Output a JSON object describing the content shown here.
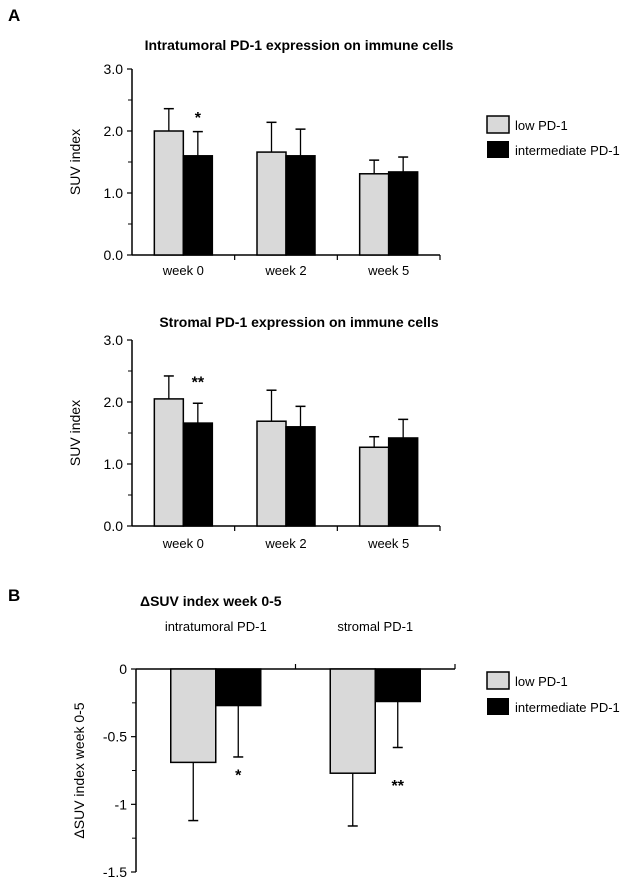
{
  "panel_labels": {
    "a": "A",
    "b": "B"
  },
  "colors": {
    "low": "#d9d9d9",
    "intermediate": "#000000",
    "axis": "#000000"
  },
  "legend": {
    "low": "low PD-1",
    "intermediate": "intermediate PD-1"
  },
  "chart_data": [
    {
      "type": "bar",
      "title": "Intratumoral PD-1 expression on immune cells",
      "xlabel": "",
      "ylabel": "SUV index",
      "ylim": [
        0,
        3.0
      ],
      "yticks": [
        "0.0",
        "1.0",
        "2.0",
        "3.0"
      ],
      "categories": [
        "week 0",
        "week 2",
        "week 5"
      ],
      "series": [
        {
          "name": "low PD-1",
          "values": [
            2.0,
            1.66,
            1.31
          ],
          "error_upper": [
            2.36,
            2.14,
            1.53
          ]
        },
        {
          "name": "intermediate PD-1",
          "values": [
            1.6,
            1.6,
            1.34
          ],
          "error_upper": [
            1.99,
            2.03,
            1.58
          ]
        }
      ],
      "annotations": [
        {
          "category": "week 0",
          "text": "*"
        }
      ],
      "legend_position": "right"
    },
    {
      "type": "bar",
      "title": "Stromal PD-1 expression on immune cells",
      "xlabel": "",
      "ylabel": "SUV index",
      "ylim": [
        0,
        3.0
      ],
      "yticks": [
        "0.0",
        "1.0",
        "2.0",
        "3.0"
      ],
      "categories": [
        "week 0",
        "week 2",
        "week 5"
      ],
      "series": [
        {
          "name": "low PD-1",
          "values": [
            2.05,
            1.69,
            1.27
          ],
          "error_upper": [
            2.42,
            2.19,
            1.44
          ]
        },
        {
          "name": "intermediate PD-1",
          "values": [
            1.66,
            1.6,
            1.42
          ],
          "error_upper": [
            1.98,
            1.93,
            1.72
          ]
        }
      ],
      "annotations": [
        {
          "category": "week 0",
          "text": "**"
        }
      ]
    },
    {
      "type": "bar",
      "title": "ΔSUV index week 0-5",
      "xlabel": "",
      "ylabel": "ΔSUV index week 0-5",
      "ylim": [
        -1.5,
        0
      ],
      "yticks": [
        "0",
        "-0.5",
        "-1",
        "-1.5"
      ],
      "categories": [
        "intratumoral PD-1",
        "stromal PD-1"
      ],
      "series": [
        {
          "name": "low PD-1",
          "values": [
            -0.69,
            -0.77
          ],
          "error_lower": [
            -1.12,
            -1.16
          ]
        },
        {
          "name": "intermediate PD-1",
          "values": [
            -0.27,
            -0.24
          ],
          "error_lower": [
            -0.65,
            -0.58
          ]
        }
      ],
      "annotations": [
        {
          "category": "intratumoral PD-1",
          "text": "*"
        },
        {
          "category": "stromal PD-1",
          "text": "**"
        }
      ],
      "legend_position": "right"
    }
  ]
}
